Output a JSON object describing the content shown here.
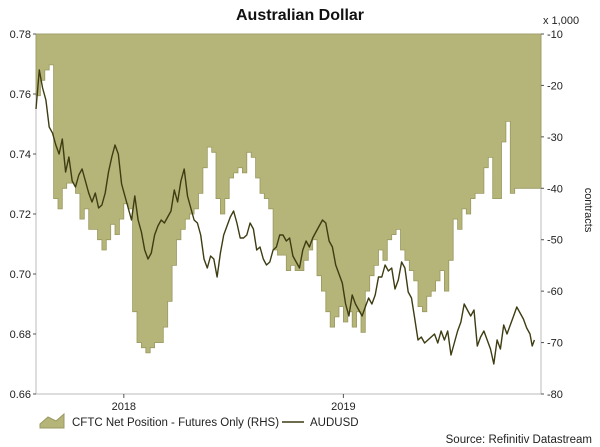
{
  "chart_data": {
    "type": "area",
    "title": "Australian Dollar",
    "left_axis": {
      "ylim": [
        0.66,
        0.78
      ],
      "ticks": [
        "0.66",
        "0.68",
        "0.70",
        "0.72",
        "0.74",
        "0.76",
        "0.78"
      ],
      "values": [
        0.66,
        0.68,
        0.7,
        0.72,
        0.74,
        0.76,
        0.78
      ]
    },
    "right_axis": {
      "ylim": [
        -80,
        -10
      ],
      "ticks": [
        "-80",
        "-70",
        "-60",
        "-50",
        "-40",
        "-30",
        "-20",
        "-10"
      ],
      "values": [
        -80,
        -70,
        -60,
        -50,
        -40,
        -30,
        -20,
        -10
      ],
      "unit_label": "x 1,000",
      "ylabel": "contracts"
    },
    "x_axis": {
      "xlim": [
        2017.6,
        2019.9
      ],
      "ticks": [
        {
          "label": "2018",
          "x": 2018.0
        },
        {
          "label": "2019",
          "x": 2019.0
        }
      ]
    },
    "series": [
      {
        "name": "CFTC Net Position - Futures Only (RHS)",
        "kind": "area",
        "axis": "right",
        "color": "#b5b479",
        "stroke": "#9a9960",
        "x": [
          2017.6,
          2017.62,
          2017.64,
          2017.66,
          2017.68,
          2017.7,
          2017.72,
          2017.74,
          2017.76,
          2017.78,
          2017.8,
          2017.82,
          2017.84,
          2017.86,
          2017.88,
          2017.9,
          2017.92,
          2017.94,
          2017.96,
          2017.98,
          2018.0,
          2018.02,
          2018.04,
          2018.06,
          2018.08,
          2018.1,
          2018.12,
          2018.14,
          2018.16,
          2018.18,
          2018.2,
          2018.22,
          2018.24,
          2018.26,
          2018.28,
          2018.3,
          2018.32,
          2018.34,
          2018.36,
          2018.38,
          2018.4,
          2018.42,
          2018.44,
          2018.46,
          2018.48,
          2018.5,
          2018.52,
          2018.54,
          2018.56,
          2018.58,
          2018.6,
          2018.62,
          2018.64,
          2018.66,
          2018.68,
          2018.7,
          2018.72,
          2018.74,
          2018.76,
          2018.78,
          2018.8,
          2018.82,
          2018.84,
          2018.86,
          2018.88,
          2018.9,
          2018.92,
          2018.94,
          2018.96,
          2018.98,
          2019.0,
          2019.02,
          2019.04,
          2019.06,
          2019.08,
          2019.1,
          2019.12,
          2019.14,
          2019.16,
          2019.18,
          2019.2,
          2019.22,
          2019.24,
          2019.26,
          2019.28,
          2019.3,
          2019.32,
          2019.34,
          2019.36,
          2019.38,
          2019.4,
          2019.42,
          2019.44,
          2019.46,
          2019.48,
          2019.5,
          2019.52,
          2019.54,
          2019.56,
          2019.58,
          2019.6,
          2019.62,
          2019.64,
          2019.66,
          2019.68,
          2019.7,
          2019.72,
          2019.74,
          2019.76,
          2019.78,
          2019.8,
          2019.82,
          2019.84,
          2019.86,
          2019.88,
          2019.9
        ],
        "values": [
          -22,
          -19,
          -17,
          -16,
          -42,
          -44,
          -40,
          -39,
          -39,
          -41,
          -46,
          -44,
          -48,
          -48,
          -50,
          -52,
          -50,
          -47,
          -49,
          -46,
          -43,
          -44,
          -64,
          -70,
          -71,
          -72,
          -71,
          -70,
          -70,
          -67,
          -62,
          -55,
          -50,
          -48,
          -46,
          -45,
          -44,
          -41,
          -36,
          -32,
          -33,
          -42,
          -45,
          -42,
          -38,
          -37,
          -36,
          -37,
          -33,
          -34,
          -38,
          -41,
          -42,
          -44,
          -52,
          -53,
          -53,
          -56,
          -55,
          -56,
          -56,
          -54,
          -52,
          -50,
          -57,
          -60,
          -64,
          -67,
          -65,
          -63,
          -66,
          -64,
          -67,
          -64,
          -68,
          -60,
          -57,
          -55,
          -52,
          -54,
          -50,
          -49,
          -48,
          -52,
          -54,
          -56,
          -58,
          -63,
          -64,
          -61,
          -60,
          -58,
          -56,
          -60,
          -54,
          -46,
          -48,
          -44,
          -45,
          -42,
          -41,
          -41,
          -36,
          -34,
          -42,
          -42,
          -31,
          -27,
          -41,
          -40,
          -40,
          -40,
          -40,
          -40,
          -40,
          -40
        ]
      },
      {
        "name": "AUDUSD",
        "kind": "line",
        "axis": "left",
        "color": "#3d3c12",
        "x": [
          2017.6,
          2017.615,
          2017.63,
          2017.645,
          2017.66,
          2017.675,
          2017.69,
          2017.705,
          2017.72,
          2017.735,
          2017.75,
          2017.765,
          2017.78,
          2017.795,
          2017.81,
          2017.825,
          2017.84,
          2017.855,
          2017.87,
          2017.885,
          2017.9,
          2017.915,
          2017.93,
          2017.945,
          2017.96,
          2017.975,
          2017.99,
          2018.005,
          2018.02,
          2018.035,
          2018.05,
          2018.065,
          2018.08,
          2018.095,
          2018.11,
          2018.125,
          2018.14,
          2018.155,
          2018.17,
          2018.185,
          2018.2,
          2018.215,
          2018.23,
          2018.245,
          2018.26,
          2018.275,
          2018.29,
          2018.305,
          2018.32,
          2018.335,
          2018.35,
          2018.365,
          2018.38,
          2018.395,
          2018.41,
          2018.425,
          2018.44,
          2018.455,
          2018.47,
          2018.485,
          2018.5,
          2018.515,
          2018.53,
          2018.545,
          2018.56,
          2018.575,
          2018.59,
          2018.605,
          2018.62,
          2018.635,
          2018.65,
          2018.665,
          2018.68,
          2018.695,
          2018.71,
          2018.725,
          2018.74,
          2018.755,
          2018.77,
          2018.785,
          2018.8,
          2018.815,
          2018.83,
          2018.845,
          2018.86,
          2018.875,
          2018.89,
          2018.905,
          2018.92,
          2018.935,
          2018.95,
          2018.965,
          2018.98,
          2018.995,
          2019.01,
          2019.025,
          2019.04,
          2019.055,
          2019.07,
          2019.085,
          2019.1,
          2019.115,
          2019.13,
          2019.145,
          2019.16,
          2019.175,
          2019.19,
          2019.205,
          2019.22,
          2019.235,
          2019.25,
          2019.265,
          2019.28,
          2019.295,
          2019.31,
          2019.325,
          2019.34,
          2019.355,
          2019.37,
          2019.385,
          2019.4,
          2019.415,
          2019.43,
          2019.445,
          2019.46,
          2019.475,
          2019.49,
          2019.505,
          2019.52,
          2019.535,
          2019.55,
          2019.565,
          2019.58,
          2019.595,
          2019.61,
          2019.625,
          2019.64,
          2019.655,
          2019.67,
          2019.685,
          2019.7,
          2019.715,
          2019.73,
          2019.745,
          2019.76,
          2019.775,
          2019.79,
          2019.805,
          2019.82,
          2019.835,
          2019.85,
          2019.86,
          2019.87
        ],
        "values": [
          0.755,
          0.768,
          0.762,
          0.758,
          0.749,
          0.747,
          0.743,
          0.74,
          0.745,
          0.734,
          0.739,
          0.731,
          0.729,
          0.733,
          0.735,
          0.731,
          0.727,
          0.724,
          0.727,
          0.722,
          0.723,
          0.727,
          0.734,
          0.739,
          0.743,
          0.74,
          0.73,
          0.726,
          0.722,
          0.718,
          0.726,
          0.718,
          0.714,
          0.708,
          0.705,
          0.707,
          0.713,
          0.716,
          0.718,
          0.717,
          0.719,
          0.721,
          0.728,
          0.724,
          0.731,
          0.735,
          0.726,
          0.722,
          0.718,
          0.717,
          0.713,
          0.705,
          0.702,
          0.706,
          0.705,
          0.699,
          0.707,
          0.713,
          0.716,
          0.719,
          0.721,
          0.717,
          0.712,
          0.712,
          0.713,
          0.717,
          0.715,
          0.708,
          0.709,
          0.705,
          0.703,
          0.704,
          0.708,
          0.709,
          0.713,
          0.713,
          0.711,
          0.712,
          0.706,
          0.704,
          0.702,
          0.708,
          0.711,
          0.709,
          0.712,
          0.714,
          0.716,
          0.718,
          0.717,
          0.711,
          0.709,
          0.703,
          0.7,
          0.697,
          0.69,
          0.686,
          0.693,
          0.69,
          0.688,
          0.686,
          0.689,
          0.692,
          0.69,
          0.693,
          0.699,
          0.699,
          0.703,
          0.701,
          0.702,
          0.695,
          0.698,
          0.704,
          0.702,
          0.694,
          0.692,
          0.685,
          0.678,
          0.679,
          0.677,
          0.678,
          0.679,
          0.68,
          0.677,
          0.681,
          0.678,
          0.681,
          0.673,
          0.677,
          0.681,
          0.684,
          0.69,
          0.688,
          0.686,
          0.688,
          0.676,
          0.679,
          0.681,
          0.678,
          0.675,
          0.67,
          0.678,
          0.675,
          0.683,
          0.68,
          0.683,
          0.686,
          0.689,
          0.687,
          0.685,
          0.682,
          0.68,
          0.676,
          0.678
        ]
      }
    ],
    "legend": {
      "placement": "bottom-left"
    },
    "source": "Source: Refinitiv Datastream",
    "grid": false,
    "colors": {
      "plot_background": "#ffffff",
      "area_fill": "#b5b479",
      "line": "#3d3c12",
      "outside_background": "#ffffff"
    }
  }
}
